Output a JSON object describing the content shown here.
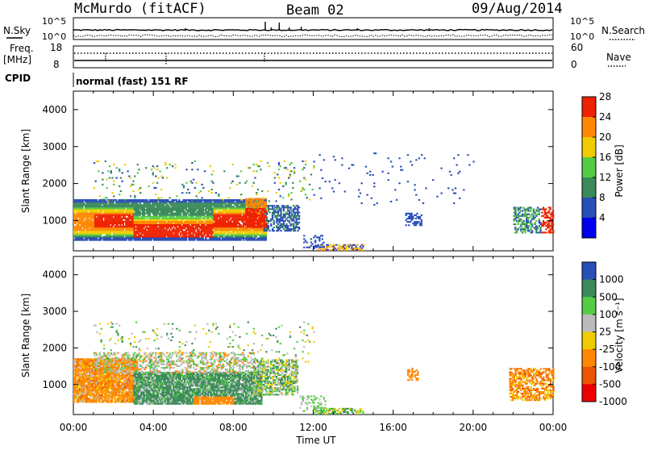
{
  "header": {
    "station": "McMurdo (fitACF)",
    "beam": "Beam 02",
    "date": "09/Aug/2014"
  },
  "summary": {
    "nsky_label": "N.Sky",
    "nsky_ticks": [
      "10^5",
      "10^0"
    ],
    "nsearch_label": "N.Search",
    "nsearch_ticks": [
      "10^5",
      "10^0"
    ],
    "freq_label": "Freq.",
    "freq_unit": "[MHz]",
    "freq_ticks": [
      "18",
      "8"
    ],
    "nave_label": "Nave",
    "nave_ticks": [
      "60",
      "0"
    ],
    "cpid_label": "CPID",
    "cpid_value": "normal (fast) 151 RF"
  },
  "chart_data": [
    {
      "type": "heatmap",
      "name": "power",
      "ylabel": "Slant Range [km]",
      "xlabel": "",
      "ylim": [
        180,
        4500
      ],
      "yticks": [
        "1000",
        "2000",
        "3000",
        "4000"
      ],
      "colorbar_label": "Power [dB]",
      "colorbar_ticks": [
        "4",
        "8",
        "12",
        "16",
        "20",
        "24",
        "28"
      ],
      "colors": [
        "#0000ee",
        "#2a4fb8",
        "#3a8a5a",
        "#55cc44",
        "#eecc00",
        "#ff8800",
        "#ee2200"
      ],
      "regions": [
        {
          "t": [
            0,
            9.5
          ],
          "r": [
            500,
            1500
          ],
          "level": "low"
        },
        {
          "t": [
            1,
            9
          ],
          "r": [
            550,
            1250
          ],
          "level": "high"
        },
        {
          "t": [
            9,
            11.3
          ],
          "r": [
            700,
            1400
          ],
          "level": "low"
        },
        {
          "t": [
            12,
            14.5
          ],
          "r": [
            180,
            350
          ],
          "level": "low"
        },
        {
          "t": [
            22,
            24
          ],
          "r": [
            700,
            1300
          ],
          "level": "mid"
        }
      ]
    },
    {
      "type": "heatmap",
      "name": "velocity",
      "ylabel": "Slant Range [km]",
      "xlabel": "Time UT",
      "ylim": [
        180,
        4500
      ],
      "yticks": [
        "1000",
        "2000",
        "3000",
        "4000"
      ],
      "xticks": [
        "00:00",
        "04:00",
        "08:00",
        "12:00",
        "16:00",
        "20:00",
        "00:00"
      ],
      "colorbar_label": "Velocity [m s⁻¹]",
      "colorbar_ticks": [
        "1000",
        "500",
        "100",
        "25",
        "-25",
        "-100",
        "-500",
        "-1000"
      ],
      "colors": [
        "#2a4fb8",
        "#3a8a5a",
        "#55cc44",
        "#bbbbbb",
        "#eecc00",
        "#ff8800",
        "#ee5500",
        "#ee0000"
      ],
      "regions": [
        {
          "t": [
            0,
            3
          ],
          "r": [
            550,
            1650
          ],
          "level": "orange"
        },
        {
          "t": [
            3,
            9.3
          ],
          "r": [
            500,
            1300
          ],
          "level": "green"
        },
        {
          "t": [
            9,
            11
          ],
          "r": [
            800,
            1600
          ],
          "level": "mixed"
        },
        {
          "t": [
            12,
            14
          ],
          "r": [
            180,
            350
          ],
          "level": "green"
        },
        {
          "t": [
            22,
            24
          ],
          "r": [
            550,
            1400
          ],
          "level": "orange"
        }
      ]
    }
  ]
}
